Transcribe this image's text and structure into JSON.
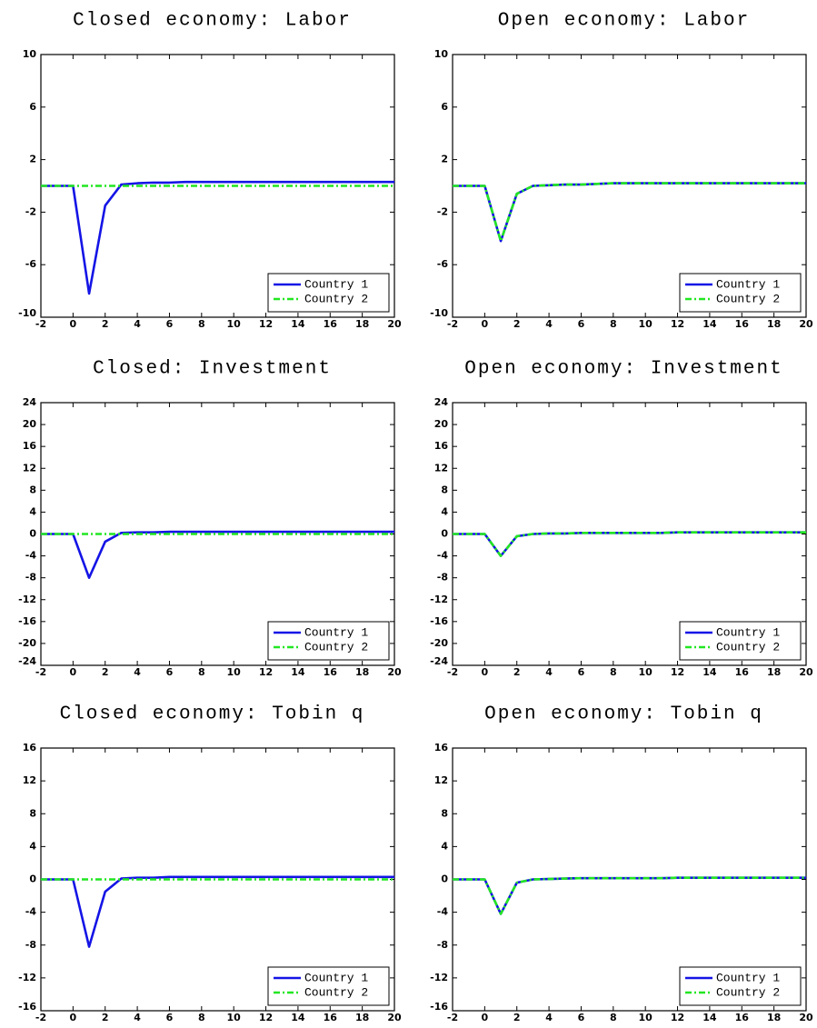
{
  "chart_data": [
    {
      "type": "line",
      "title": "Closed economy: Labor",
      "x": [
        -2,
        -1,
        0,
        1,
        2,
        3,
        4,
        5,
        6,
        7,
        8,
        9,
        10,
        11,
        12,
        13,
        14,
        15,
        16,
        17,
        18,
        19,
        20
      ],
      "series": [
        {
          "name": "Country 1",
          "color": "#1414e6",
          "values": [
            0,
            0,
            0,
            -8.2,
            -1.5,
            0.1,
            0.2,
            0.25,
            0.25,
            0.3,
            0.3,
            0.3,
            0.3,
            0.3,
            0.3,
            0.3,
            0.3,
            0.3,
            0.3,
            0.3,
            0.3,
            0.3,
            0.3
          ]
        },
        {
          "name": "Country 2",
          "color": "#22e622",
          "values": [
            0,
            0,
            0,
            0,
            0,
            0,
            0,
            0,
            0,
            0,
            0,
            0,
            0,
            0,
            0,
            0,
            0,
            0,
            0,
            0,
            0,
            0,
            0
          ]
        }
      ],
      "xlim": [
        -2,
        20
      ],
      "xticks": [
        -2,
        0,
        2,
        4,
        6,
        8,
        10,
        12,
        14,
        16,
        18,
        20
      ],
      "ylim": [
        -10,
        10
      ],
      "yticks": [
        -10,
        -6,
        -2,
        2,
        6,
        10
      ],
      "legend": "lower right"
    },
    {
      "type": "line",
      "title": "Open economy: Labor",
      "x": [
        -2,
        -1,
        0,
        1,
        2,
        3,
        4,
        5,
        6,
        7,
        8,
        9,
        10,
        11,
        12,
        13,
        14,
        15,
        16,
        17,
        18,
        19,
        20
      ],
      "series": [
        {
          "name": "Country 1",
          "color": "#1414e6",
          "values": [
            0,
            0,
            0,
            -4.2,
            -0.6,
            0,
            0.05,
            0.1,
            0.1,
            0.15,
            0.2,
            0.2,
            0.2,
            0.2,
            0.2,
            0.2,
            0.2,
            0.2,
            0.2,
            0.2,
            0.2,
            0.2,
            0.2
          ]
        },
        {
          "name": "Country 2",
          "color": "#22e622",
          "values": [
            0,
            0,
            0,
            -4.2,
            -0.6,
            0,
            0.05,
            0.1,
            0.1,
            0.15,
            0.2,
            0.2,
            0.2,
            0.2,
            0.2,
            0.2,
            0.2,
            0.2,
            0.2,
            0.2,
            0.2,
            0.2,
            0.2
          ]
        }
      ],
      "xlim": [
        -2,
        20
      ],
      "xticks": [
        -2,
        0,
        2,
        4,
        6,
        8,
        10,
        12,
        14,
        16,
        18,
        20
      ],
      "ylim": [
        -10,
        10
      ],
      "yticks": [
        -10,
        -6,
        -2,
        2,
        6,
        10
      ],
      "legend": "lower right"
    },
    {
      "type": "line",
      "title": "Closed: Investment",
      "x": [
        -2,
        -1,
        0,
        1,
        2,
        3,
        4,
        5,
        6,
        7,
        8,
        9,
        10,
        11,
        12,
        13,
        14,
        15,
        16,
        17,
        18,
        19,
        20
      ],
      "series": [
        {
          "name": "Country 1",
          "color": "#1414e6",
          "values": [
            0,
            0,
            0,
            -8,
            -1.4,
            0.2,
            0.3,
            0.3,
            0.4,
            0.4,
            0.4,
            0.4,
            0.4,
            0.4,
            0.4,
            0.4,
            0.4,
            0.4,
            0.4,
            0.4,
            0.4,
            0.4,
            0.4
          ]
        },
        {
          "name": "Country 2",
          "color": "#22e622",
          "values": [
            0,
            0,
            0,
            0,
            0,
            0,
            0,
            0,
            0,
            0,
            0,
            0,
            0,
            0,
            0,
            0,
            0,
            0,
            0,
            0,
            0,
            0,
            0
          ]
        }
      ],
      "xlim": [
        -2,
        20
      ],
      "xticks": [
        -2,
        0,
        2,
        4,
        6,
        8,
        10,
        12,
        14,
        16,
        18,
        20
      ],
      "ylim": [
        -24,
        24
      ],
      "yticks": [
        -24,
        -20,
        -16,
        -12,
        -8,
        -4,
        0,
        4,
        8,
        12,
        16,
        20,
        24
      ],
      "legend": "lower right"
    },
    {
      "type": "line",
      "title": "Open economy: Investment",
      "x": [
        -2,
        -1,
        0,
        1,
        2,
        3,
        4,
        5,
        6,
        7,
        8,
        9,
        10,
        11,
        12,
        13,
        14,
        15,
        16,
        17,
        18,
        19,
        20
      ],
      "series": [
        {
          "name": "Country 1",
          "color": "#1414e6",
          "values": [
            0,
            0,
            0,
            -4,
            -0.4,
            0,
            0.1,
            0.1,
            0.2,
            0.2,
            0.2,
            0.2,
            0.2,
            0.2,
            0.3,
            0.3,
            0.3,
            0.3,
            0.3,
            0.3,
            0.3,
            0.3,
            0.3
          ]
        },
        {
          "name": "Country 2",
          "color": "#22e622",
          "values": [
            0,
            0,
            0,
            -4,
            -0.4,
            0,
            0.1,
            0.1,
            0.2,
            0.2,
            0.2,
            0.2,
            0.2,
            0.2,
            0.3,
            0.3,
            0.3,
            0.3,
            0.3,
            0.3,
            0.3,
            0.3,
            0.3
          ]
        }
      ],
      "xlim": [
        -2,
        20
      ],
      "xticks": [
        -2,
        0,
        2,
        4,
        6,
        8,
        10,
        12,
        14,
        16,
        18,
        20
      ],
      "ylim": [
        -24,
        24
      ],
      "yticks": [
        -24,
        -20,
        -16,
        -12,
        -8,
        -4,
        0,
        4,
        8,
        12,
        16,
        20,
        24
      ],
      "legend": "lower right"
    },
    {
      "type": "line",
      "title": "Closed economy: Tobin q",
      "x": [
        -2,
        -1,
        0,
        1,
        2,
        3,
        4,
        5,
        6,
        7,
        8,
        9,
        10,
        11,
        12,
        13,
        14,
        15,
        16,
        17,
        18,
        19,
        20
      ],
      "series": [
        {
          "name": "Country 1",
          "color": "#1414e6",
          "values": [
            0,
            0,
            0,
            -8.2,
            -1.5,
            0.1,
            0.2,
            0.2,
            0.3,
            0.3,
            0.3,
            0.3,
            0.3,
            0.3,
            0.3,
            0.3,
            0.3,
            0.3,
            0.3,
            0.3,
            0.3,
            0.3,
            0.3
          ]
        },
        {
          "name": "Country 2",
          "color": "#22e622",
          "values": [
            0,
            0,
            0,
            0,
            0,
            0,
            0,
            0,
            0,
            0,
            0,
            0,
            0,
            0,
            0,
            0,
            0,
            0,
            0,
            0,
            0,
            0,
            0
          ]
        }
      ],
      "xlim": [
        -2,
        20
      ],
      "xticks": [
        -2,
        0,
        2,
        4,
        6,
        8,
        10,
        12,
        14,
        16,
        18,
        20
      ],
      "ylim": [
        -16,
        16
      ],
      "yticks": [
        -16,
        -12,
        -8,
        -4,
        0,
        4,
        8,
        12,
        16
      ],
      "legend": "lower right"
    },
    {
      "type": "line",
      "title": "Open economy: Tobin q",
      "x": [
        -2,
        -1,
        0,
        1,
        2,
        3,
        4,
        5,
        6,
        7,
        8,
        9,
        10,
        11,
        12,
        13,
        14,
        15,
        16,
        17,
        18,
        19,
        20
      ],
      "series": [
        {
          "name": "Country 1",
          "color": "#1414e6",
          "values": [
            0,
            0,
            0,
            -4.2,
            -0.4,
            0,
            0.05,
            0.1,
            0.15,
            0.15,
            0.15,
            0.15,
            0.15,
            0.15,
            0.2,
            0.2,
            0.2,
            0.2,
            0.2,
            0.2,
            0.2,
            0.2,
            0.2
          ]
        },
        {
          "name": "Country 2",
          "color": "#22e622",
          "values": [
            0,
            0,
            0,
            -4.2,
            -0.4,
            0,
            0.05,
            0.1,
            0.15,
            0.15,
            0.15,
            0.15,
            0.15,
            0.15,
            0.2,
            0.2,
            0.2,
            0.2,
            0.2,
            0.2,
            0.2,
            0.2,
            0.2
          ]
        }
      ],
      "xlim": [
        -2,
        20
      ],
      "xticks": [
        -2,
        0,
        2,
        4,
        6,
        8,
        10,
        12,
        14,
        16,
        18,
        20
      ],
      "ylim": [
        -16,
        16
      ],
      "yticks": [
        -16,
        -12,
        -8,
        -4,
        0,
        4,
        8,
        12,
        16
      ],
      "legend": "lower right"
    }
  ]
}
